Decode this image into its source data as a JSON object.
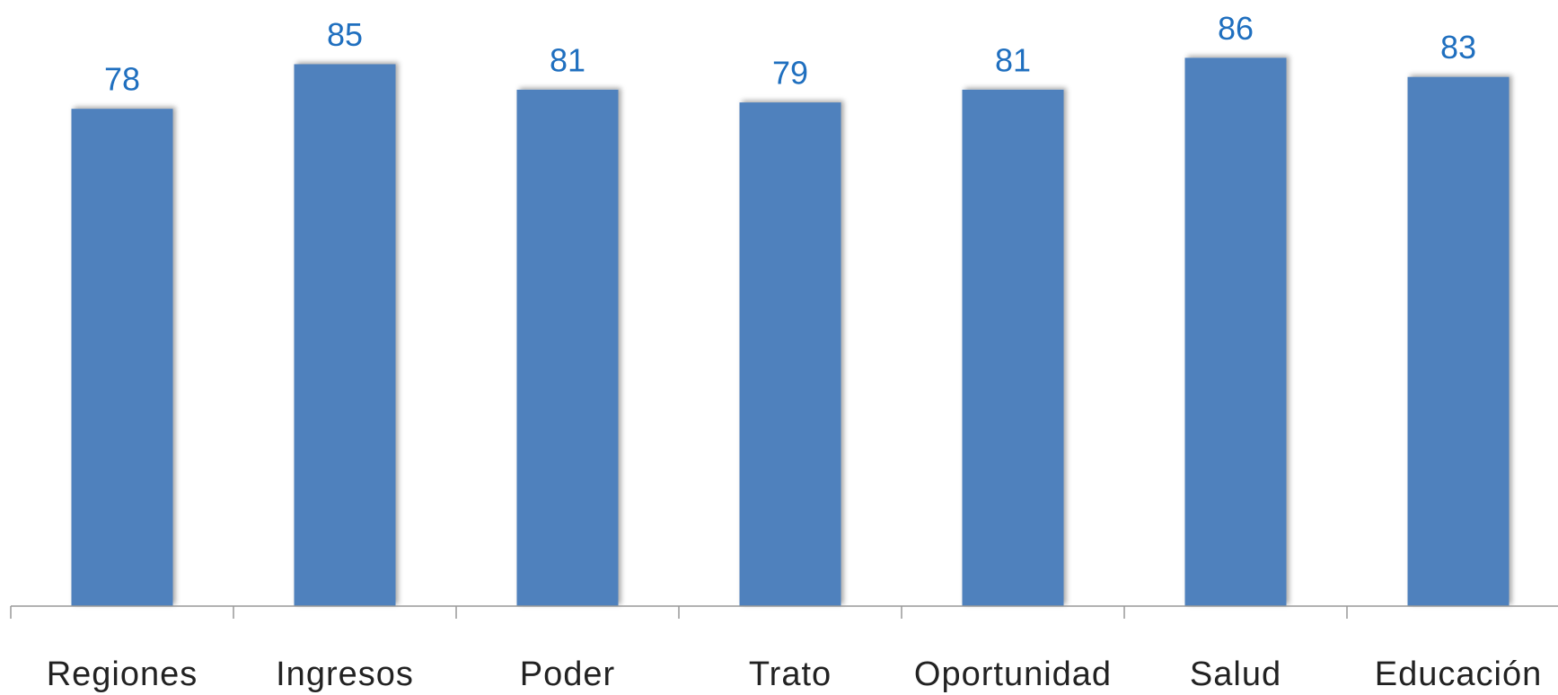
{
  "chart_data": {
    "type": "bar",
    "categories": [
      "Regiones",
      "Ingresos",
      "Poder",
      "Trato",
      "Oportunidad",
      "Salud",
      "Educación"
    ],
    "values": [
      78,
      85,
      81,
      79,
      81,
      86,
      83
    ],
    "color": "#4f81bd"
  }
}
